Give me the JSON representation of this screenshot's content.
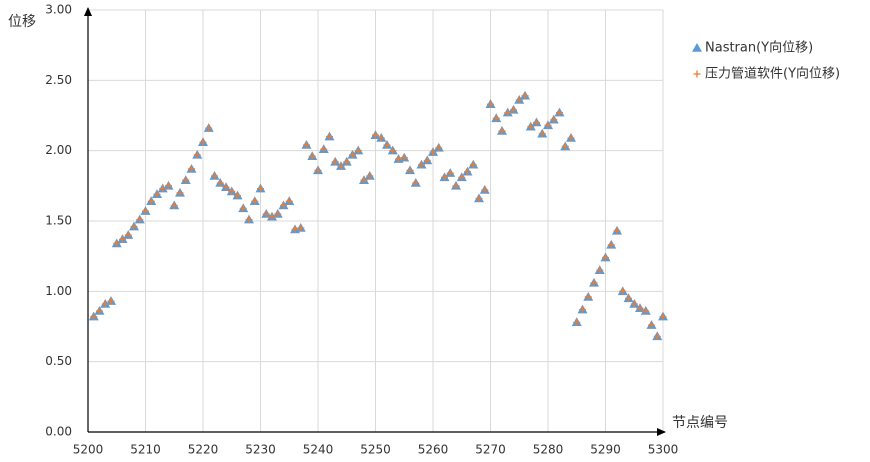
{
  "chart_data": {
    "type": "scatter",
    "y_label": "位移",
    "x_label": "节点编号",
    "xlim": [
      5200,
      5300
    ],
    "xticks": [
      5200,
      5210,
      5220,
      5230,
      5240,
      5250,
      5260,
      5270,
      5280,
      5290,
      5300
    ],
    "ylim": [
      0,
      3
    ],
    "yticks": [
      {
        "value": 0,
        "label": "0.00"
      },
      {
        "value": 0.5,
        "label": "0.50"
      },
      {
        "value": 1,
        "label": "1.00"
      },
      {
        "value": 1.5,
        "label": "1.50"
      },
      {
        "value": 2,
        "label": "2.00"
      },
      {
        "value": 2.5,
        "label": "2.50"
      },
      {
        "value": 3,
        "label": "3.00"
      }
    ],
    "grid": true,
    "legend": "right",
    "x": [
      5201,
      5202,
      5203,
      5204,
      5205,
      5206,
      5207,
      5208,
      5209,
      5210,
      5211,
      5212,
      5213,
      5214,
      5215,
      5216,
      5217,
      5218,
      5219,
      5220,
      5221,
      5222,
      5223,
      5224,
      5225,
      5226,
      5227,
      5228,
      5229,
      5230,
      5231,
      5232,
      5233,
      5234,
      5235,
      5236,
      5237,
      5238,
      5239,
      5240,
      5241,
      5242,
      5243,
      5244,
      5245,
      5246,
      5247,
      5248,
      5249,
      5250,
      5251,
      5252,
      5253,
      5254,
      5255,
      5256,
      5257,
      5258,
      5259,
      5260,
      5261,
      5262,
      5263,
      5264,
      5265,
      5266,
      5267,
      5268,
      5269,
      5270,
      5271,
      5272,
      5273,
      5274,
      5275,
      5276,
      5277,
      5278,
      5279,
      5280,
      5281,
      5282,
      5283,
      5284,
      5285,
      5286,
      5287,
      5288,
      5289,
      5290,
      5291,
      5292,
      5293,
      5294,
      5295,
      5296,
      5297,
      5298,
      5299,
      5300
    ],
    "series": [
      {
        "name": "Nastran(Y向位移)",
        "color": "#5b9bd5",
        "marker": "triangle",
        "values": [
          0.82,
          0.86,
          0.91,
          0.93,
          1.34,
          1.37,
          1.4,
          1.46,
          1.51,
          1.57,
          1.64,
          1.69,
          1.73,
          1.75,
          1.61,
          1.7,
          1.79,
          1.87,
          1.97,
          2.06,
          2.16,
          1.82,
          1.77,
          1.74,
          1.71,
          1.68,
          1.59,
          1.51,
          1.64,
          1.73,
          1.55,
          1.53,
          1.55,
          1.61,
          1.64,
          1.44,
          1.45,
          2.04,
          1.96,
          1.86,
          2.01,
          2.1,
          1.92,
          1.89,
          1.92,
          1.97,
          2.0,
          1.79,
          1.82,
          2.11,
          2.09,
          2.04,
          2.0,
          1.94,
          1.95,
          1.86,
          1.77,
          1.9,
          1.93,
          1.99,
          2.02,
          1.81,
          1.84,
          1.75,
          1.81,
          1.85,
          1.9,
          1.66,
          1.72,
          2.33,
          2.23,
          2.14,
          2.27,
          2.29,
          2.36,
          2.39,
          2.17,
          2.2,
          2.12,
          2.18,
          2.22,
          2.27,
          2.03,
          2.09,
          0.78,
          0.87,
          0.96,
          1.06,
          1.15,
          1.24,
          1.33,
          1.43,
          1.0,
          0.95,
          0.91,
          0.88,
          0.86,
          0.76,
          0.68,
          0.82
        ]
      },
      {
        "name": "压力管道软件(Y向位移)",
        "color": "#ed7d31",
        "marker": "plus",
        "values": [
          0.82,
          0.86,
          0.91,
          0.93,
          1.34,
          1.37,
          1.4,
          1.46,
          1.51,
          1.57,
          1.64,
          1.69,
          1.73,
          1.75,
          1.61,
          1.7,
          1.79,
          1.87,
          1.97,
          2.06,
          2.16,
          1.82,
          1.77,
          1.74,
          1.71,
          1.68,
          1.59,
          1.51,
          1.64,
          1.73,
          1.55,
          1.53,
          1.55,
          1.61,
          1.64,
          1.44,
          1.45,
          2.04,
          1.96,
          1.86,
          2.01,
          2.1,
          1.92,
          1.89,
          1.92,
          1.97,
          2.0,
          1.79,
          1.82,
          2.11,
          2.09,
          2.04,
          2.0,
          1.94,
          1.95,
          1.86,
          1.77,
          1.9,
          1.93,
          1.99,
          2.02,
          1.81,
          1.84,
          1.75,
          1.81,
          1.85,
          1.9,
          1.66,
          1.72,
          2.33,
          2.23,
          2.14,
          2.27,
          2.29,
          2.36,
          2.39,
          2.17,
          2.2,
          2.12,
          2.18,
          2.22,
          2.27,
          2.03,
          2.09,
          0.78,
          0.87,
          0.96,
          1.06,
          1.15,
          1.24,
          1.33,
          1.43,
          1.0,
          0.95,
          0.91,
          0.88,
          0.86,
          0.76,
          0.68,
          0.82
        ]
      }
    ]
  }
}
